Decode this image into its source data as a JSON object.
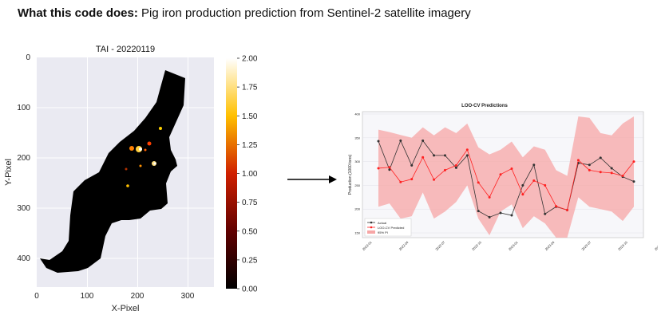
{
  "header": {
    "bold": "What this code does:",
    "text": " Pig iron production prediction from Sentinel-2 satellite imagery"
  },
  "heatmap": {
    "title": "TAI - 20220119",
    "xlabel": "X-Pixel",
    "ylabel": "Y-Pixel",
    "xticks": [
      "0",
      "100",
      "200",
      "300"
    ],
    "yticks": [
      "0",
      "100",
      "200",
      "300",
      "400"
    ],
    "colorbar_ticks": [
      "0.00",
      "0.25",
      "0.50",
      "0.75",
      "1.00",
      "1.25",
      "1.50",
      "1.75",
      "2.00"
    ],
    "colors": {
      "background": "#eaeaf2",
      "mask": "#000000"
    }
  },
  "arrow": {
    "icon": "right-arrow-icon"
  },
  "chart_data": {
    "type": "line",
    "title": "LOO-CV Predictions",
    "ylabel": "Production (1000 tons)",
    "xlabel": "",
    "x_ticks": [
      "2022-01",
      "2022-04",
      "2022-07",
      "2022-10",
      "2023-01",
      "2023-04",
      "2023-07",
      "2023-10",
      "2024-01"
    ],
    "y_ticks": [
      "150",
      "200",
      "250",
      "300",
      "350",
      "400"
    ],
    "ylim": [
      140,
      405
    ],
    "legend_position": "lower-left",
    "series": [
      {
        "name": "Actual",
        "color": "#333333",
        "values": [
          343,
          283,
          344,
          292,
          344,
          313,
          313,
          287,
          313,
          196,
          183,
          192,
          187,
          250,
          293,
          190,
          205,
          198,
          297,
          293,
          308,
          286,
          268,
          258
        ]
      },
      {
        "name": "LOO-CV Predicted",
        "color": "#ff2020",
        "values": [
          286,
          288,
          257,
          263,
          309,
          262,
          282,
          292,
          325,
          256,
          225,
          273,
          285,
          231,
          260,
          250,
          206,
          198,
          303,
          282,
          278,
          276,
          270,
          300
        ]
      }
    ],
    "band": {
      "name": "95% PI",
      "color": "#f7a6a6",
      "upper": [
        367,
        362,
        356,
        350,
        372,
        355,
        372,
        360,
        380,
        330,
        315,
        325,
        342,
        309,
        332,
        325,
        282,
        270,
        395,
        392,
        360,
        355,
        380,
        395
      ],
      "lower": [
        205,
        212,
        180,
        185,
        235,
        180,
        195,
        215,
        250,
        180,
        145,
        195,
        210,
        160,
        185,
        170,
        140,
        140,
        225,
        205,
        200,
        195,
        175,
        205
      ]
    }
  }
}
